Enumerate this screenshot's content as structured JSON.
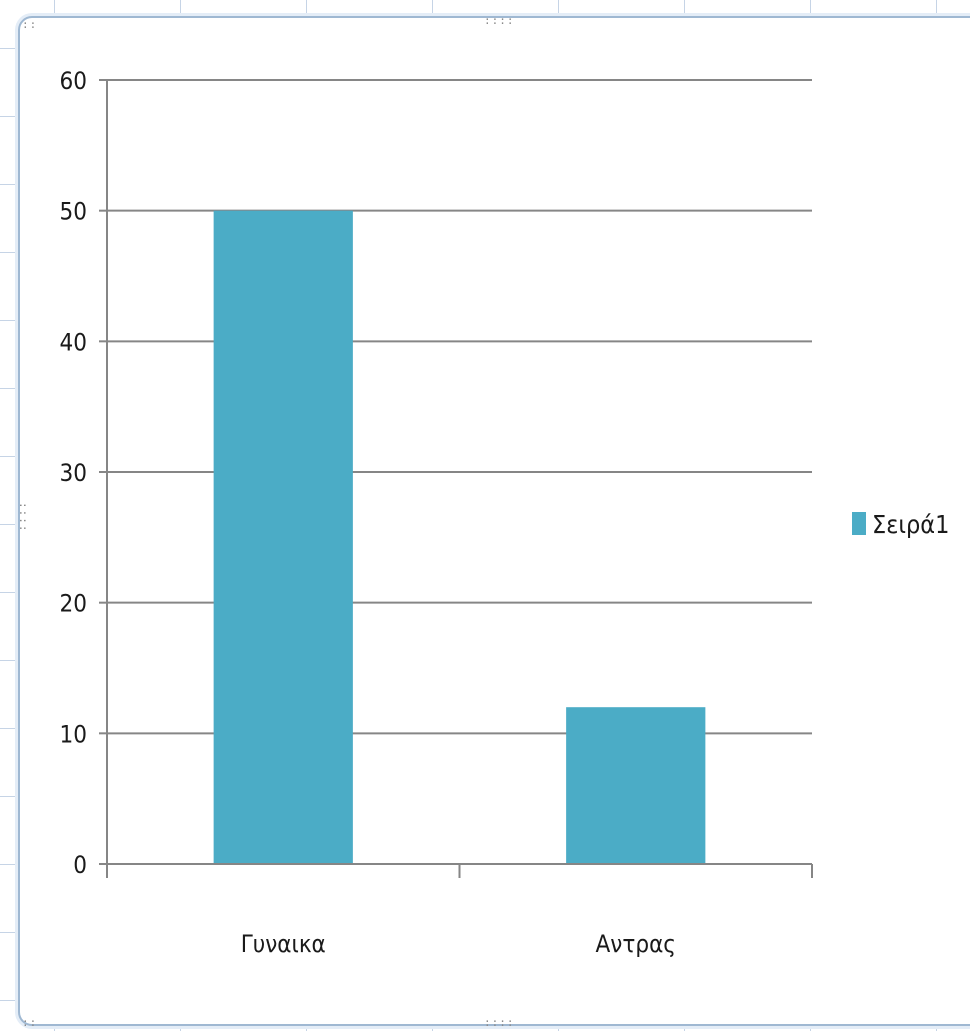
{
  "colors": {
    "bar": "#4bacc6",
    "gridline": "#868686",
    "axis": "#868686"
  },
  "chart_data": {
    "type": "bar",
    "categories": [
      "Γυναικα",
      "Αντρας"
    ],
    "series": [
      {
        "name": "Σειρά1",
        "values": [
          50,
          12
        ]
      }
    ],
    "title": "",
    "xlabel": "",
    "ylabel": "",
    "ylim": [
      0,
      60
    ],
    "yticks": [
      0,
      10,
      20,
      30,
      40,
      50,
      60
    ],
    "ytick_labels": [
      "0",
      "10",
      "20",
      "30",
      "40",
      "50",
      "60"
    ],
    "grid": true,
    "legend": "right"
  }
}
